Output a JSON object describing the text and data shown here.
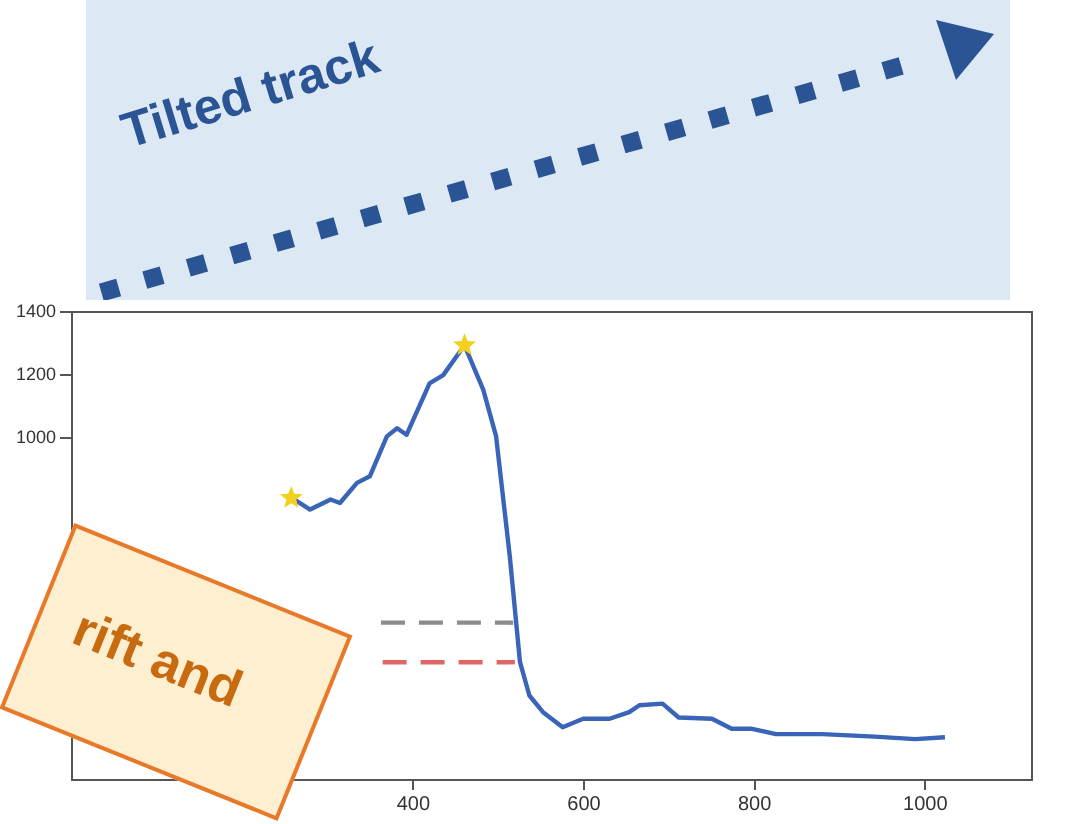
{
  "chart_data": {
    "type": "line",
    "xlim": [
      0,
      1125
    ],
    "ylim": [
      -90,
      1400
    ],
    "xticks": [
      400,
      600,
      800,
      1000
    ],
    "yticks": [
      1000,
      1200,
      1400
    ],
    "grid": false,
    "legend": false,
    "annotations": [
      "Tilted track",
      "rift and"
    ],
    "series": [
      {
        "type": "line",
        "color": "#3a64b8",
        "x": [
          257,
          264,
          279,
          303,
          314,
          334,
          349,
          369,
          381,
          392,
          419,
          435,
          460,
          482,
          497,
          513,
          525,
          536,
          552,
          575,
          599,
          630,
          653,
          665,
          692,
          711,
          750,
          773,
          797,
          825,
          879,
          941,
          988,
          1023
        ],
        "values": [
          808,
          797,
          771,
          803,
          792,
          856,
          877,
          1004,
          1030,
          1009,
          1173,
          1199,
          1294,
          1152,
          1004,
          623,
          285,
          179,
          126,
          78,
          105,
          105,
          126,
          148,
          153,
          109,
          105,
          73,
          73,
          56,
          56,
          48,
          40,
          46
        ]
      },
      {
        "type": "line",
        "color": "#8c8c8c",
        "line_style": "dashed",
        "x": [
          362,
          517
        ],
        "values": [
          411,
          411
        ]
      },
      {
        "type": "line",
        "color": "#e06666",
        "line_style": "dashed",
        "x": [
          364,
          519
        ],
        "values": [
          285,
          285
        ]
      },
      {
        "type": "scatter",
        "color": "#f2d021",
        "marker": "star",
        "x": [
          257,
          460
        ],
        "values": [
          808,
          1294
        ]
      }
    ]
  }
}
